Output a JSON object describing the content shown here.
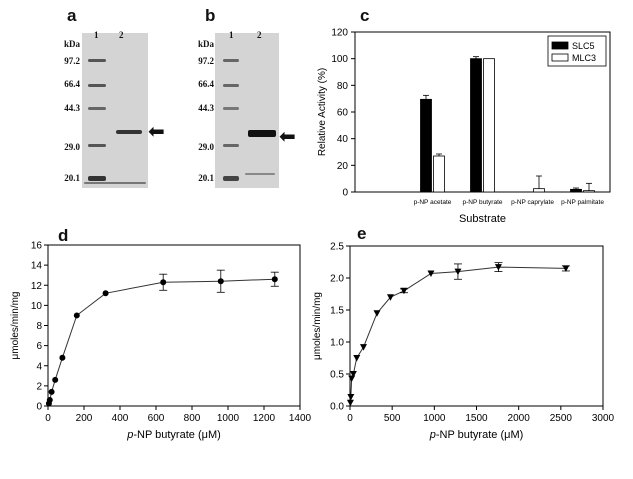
{
  "panels": {
    "a": {
      "letter": "a",
      "kda_label": "kDa",
      "lanes": [
        "1",
        "2"
      ],
      "markers": [
        "97.2",
        "66.4",
        "44.3",
        "29.0",
        "20.1"
      ]
    },
    "b": {
      "letter": "b",
      "kda_label": "kDa",
      "lanes": [
        "1",
        "2"
      ],
      "markers": [
        "97.2",
        "66.4",
        "44.3",
        "29.0",
        "20.1"
      ]
    },
    "c": {
      "letter": "c"
    },
    "d": {
      "letter": "d"
    },
    "e": {
      "letter": "e"
    }
  },
  "colors": {
    "black_bar": "#000000",
    "white_bar": "#ffffff",
    "line": "#333333"
  },
  "chart_data": [
    {
      "id": "c",
      "type": "bar",
      "categories": [
        "p-NP acetate",
        "p-NP butyrate",
        "p-NP caprylate",
        "p-NP palmitate"
      ],
      "series": [
        {
          "name": "SLC5",
          "values": [
            69.5,
            100,
            0,
            2
          ],
          "errors": [
            3,
            1.5,
            0,
            1
          ]
        },
        {
          "name": "MLC3",
          "values": [
            27,
            100,
            2.5,
            1
          ],
          "errors": [
            1.5,
            0,
            9.5,
            5.5
          ]
        }
      ],
      "xlabel": "Substrate",
      "ylabel": "Relative Activity (%)",
      "ylim": [
        0,
        120
      ],
      "yticks": [
        0,
        20,
        40,
        60,
        80,
        100,
        120
      ],
      "legend": "top-right"
    },
    {
      "id": "d",
      "type": "line",
      "x": [
        5,
        10,
        20,
        40,
        80,
        160,
        320,
        640,
        960,
        1260
      ],
      "y": [
        0.25,
        0.6,
        1.4,
        2.6,
        4.8,
        9.0,
        11.2,
        12.3,
        12.4,
        12.6
      ],
      "yerr": [
        0,
        0,
        0,
        0,
        0,
        0,
        0,
        0.8,
        1.1,
        0.7
      ],
      "xlabel": "p-NP butyrate (μM)",
      "ylabel": "μmoles/min/mg",
      "xlim": [
        0,
        1400
      ],
      "ylim": [
        0,
        16
      ],
      "xticks": [
        0,
        200,
        400,
        600,
        800,
        1000,
        1200,
        1400
      ],
      "yticks": [
        0,
        2,
        4,
        6,
        8,
        10,
        12,
        14,
        16
      ]
    },
    {
      "id": "e",
      "type": "line",
      "x": [
        5,
        10,
        20,
        40,
        80,
        160,
        320,
        480,
        640,
        960,
        1280,
        1760,
        2560
      ],
      "y": [
        0.05,
        0.14,
        0.43,
        0.5,
        0.75,
        0.92,
        1.45,
        1.7,
        1.8,
        2.07,
        2.1,
        2.17,
        2.15
      ],
      "yerr": [
        0,
        0,
        0,
        0,
        0,
        0,
        0,
        0,
        0.03,
        0,
        0.12,
        0.07,
        0.04
      ],
      "xlabel": "p-NP butyrate (μM)",
      "ylabel": "μmoles/min/mg",
      "xlim": [
        0,
        3000
      ],
      "ylim": [
        0,
        2.5
      ],
      "xticks": [
        0,
        500,
        1000,
        1500,
        2000,
        2500,
        3000
      ],
      "yticks": [
        0,
        0.5,
        1.0,
        1.5,
        2.0,
        2.5
      ]
    }
  ]
}
